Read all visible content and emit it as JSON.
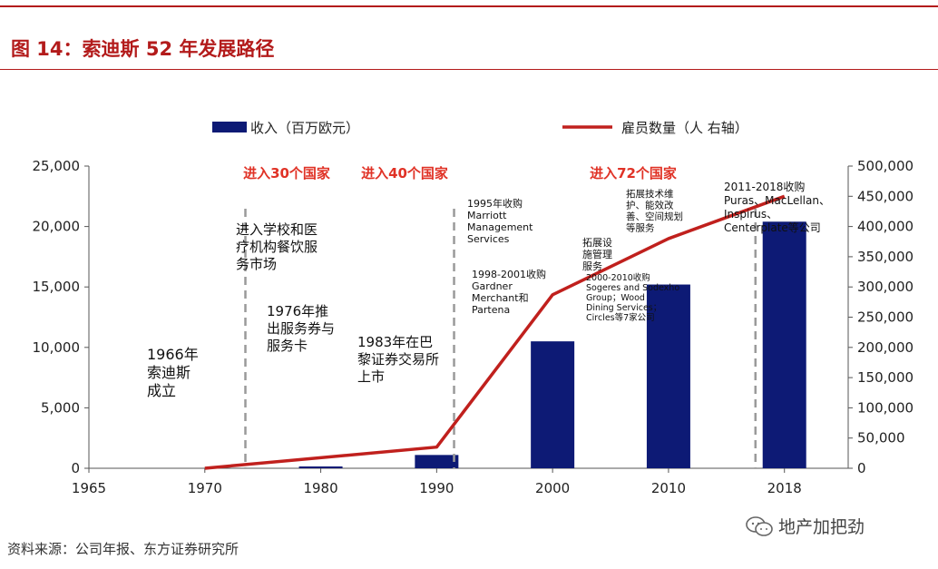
{
  "figure": {
    "title": "图 14：索迪斯 52 年发展路径"
  },
  "source": "资料来源：公司年报、东方证券研究所",
  "watermark": "地产加把劲",
  "chart_data": {
    "type": "bar+line",
    "legend": {
      "bar": "收入（百万欧元）",
      "line": "雇员数量（人 右轴）",
      "placement": "top"
    },
    "x": {
      "ticks": [
        1965,
        1970,
        1980,
        1990,
        2000,
        2010,
        2018
      ],
      "positions": [
        0,
        1,
        2,
        3,
        4,
        5,
        6
      ]
    },
    "y_left": {
      "ylim": [
        0,
        25000
      ],
      "ticks": [
        "0",
        "5,000",
        "10,000",
        "15,000",
        "20,000",
        "25,000"
      ],
      "tick_values": [
        0,
        5000,
        10000,
        15000,
        20000,
        25000
      ]
    },
    "y_right": {
      "ylim": [
        0,
        500000
      ],
      "ticks": [
        "0",
        "50,000",
        "100,000",
        "150,000",
        "200,000",
        "250,000",
        "300,000",
        "350,000",
        "400,000",
        "450,000",
        "500,000"
      ],
      "tick_values": [
        0,
        50000,
        100000,
        150000,
        200000,
        250000,
        300000,
        350000,
        400000,
        450000,
        500000
      ]
    },
    "series": [
      {
        "name": "收入（百万欧元）",
        "type": "bar",
        "axis": "left",
        "x": [
          2,
          3,
          4,
          5,
          6
        ],
        "values": [
          150,
          1100,
          10500,
          15200,
          20400
        ]
      },
      {
        "name": "雇员数量（人 右轴）",
        "type": "line",
        "axis": "right",
        "x": [
          1,
          3,
          4,
          5,
          6
        ],
        "values": [
          0,
          35000,
          287000,
          380000,
          450000
        ]
      }
    ],
    "vlines": [
      1.35,
      3.15,
      5.75
    ],
    "colors": {
      "bar": "#0d1a75",
      "line": "#c0201d",
      "vline": "#9a9a9a",
      "red_text": "#e03226"
    },
    "phase_labels": [
      "进入30个国家",
      "进入40个国家",
      "进入72个国家"
    ],
    "annotations": [
      {
        "id": "1966",
        "lines": [
          "1966年",
          "索迪斯",
          "成立"
        ]
      },
      {
        "id": "schools",
        "lines": [
          "进入学校和医",
          "疗机构餐饮服",
          "务市场"
        ]
      },
      {
        "id": "1976",
        "lines": [
          "1976年推",
          "出服务券与",
          "服务卡"
        ]
      },
      {
        "id": "1983",
        "lines": [
          "1983年在巴",
          "黎证券交易所",
          "上市"
        ]
      },
      {
        "id": "1995",
        "lines": [
          "1995年收购",
          "Marriott",
          "Management",
          "Services"
        ]
      },
      {
        "id": "1998",
        "lines": [
          "1998-2001收购",
          "Gardner",
          "Merchant和",
          "Partena"
        ]
      },
      {
        "id": "expand",
        "lines": [
          "拓展设",
          "施管理",
          "服务"
        ]
      },
      {
        "id": "2000s",
        "lines": [
          "2000-2010收购",
          "Sogeres and Sodexho",
          "Group；Wood",
          "Dining Services；",
          "Circles等7家公司"
        ]
      },
      {
        "id": "tech",
        "lines": [
          "拓展技术维",
          "护、能效改",
          "善、空间规划",
          "等服务"
        ]
      },
      {
        "id": "2011",
        "lines": [
          "2011-2018收购",
          "Puras、MacLellan、",
          "Inspirus、",
          "Centerplate等公司"
        ]
      }
    ]
  }
}
